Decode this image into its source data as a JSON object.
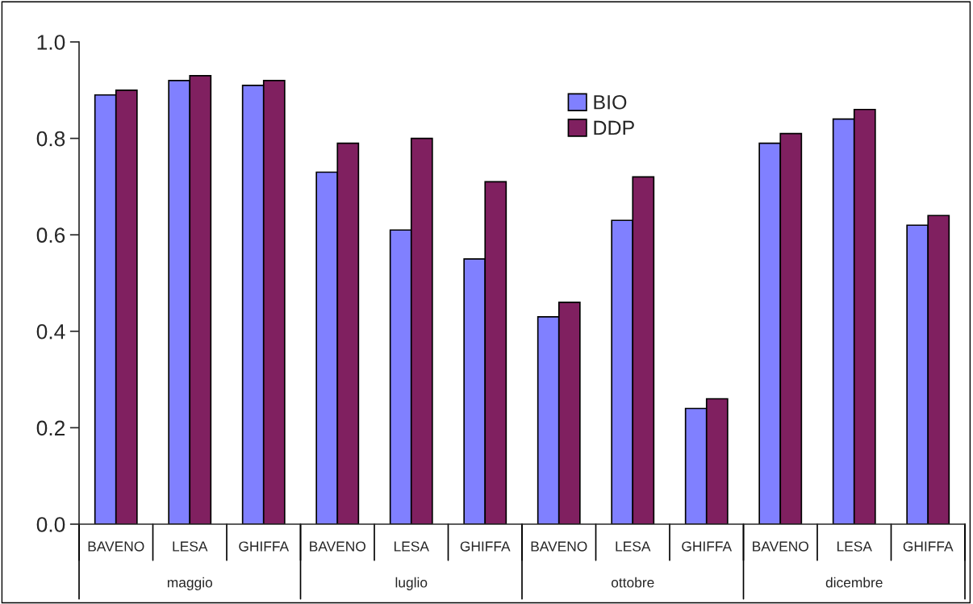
{
  "chart_data": {
    "type": "bar",
    "categories": [
      "BAVENO",
      "LESA",
      "GHIFFA",
      "BAVENO",
      "LESA",
      "GHIFFA",
      "BAVENO",
      "LESA",
      "GHIFFA",
      "BAVENO",
      "LESA",
      "GHIFFA"
    ],
    "series": [
      {
        "name": "BIO",
        "color": "#8080ff",
        "values": [
          0.89,
          0.92,
          0.91,
          0.73,
          0.61,
          0.55,
          0.43,
          0.63,
          0.24,
          0.79,
          0.84,
          0.62
        ]
      },
      {
        "name": "DDP",
        "color": "#802060",
        "values": [
          0.9,
          0.93,
          0.92,
          0.79,
          0.8,
          0.71,
          0.46,
          0.72,
          0.26,
          0.81,
          0.86,
          0.64
        ]
      }
    ],
    "annotations": [
      "maggio",
      "luglio",
      "ottobre",
      "dicembre"
    ],
    "ylim": [
      0.0,
      1.0
    ],
    "yticks": [
      {
        "value": 0.0,
        "label": "0.0"
      },
      {
        "value": 0.2,
        "label": "0.2"
      },
      {
        "value": 0.4,
        "label": "0.4"
      },
      {
        "value": 0.6,
        "label": "0.6"
      },
      {
        "value": 0.8,
        "label": "0.8"
      },
      {
        "value": 1.0,
        "label": "1.0"
      }
    ],
    "grid": false,
    "legend": "top"
  }
}
